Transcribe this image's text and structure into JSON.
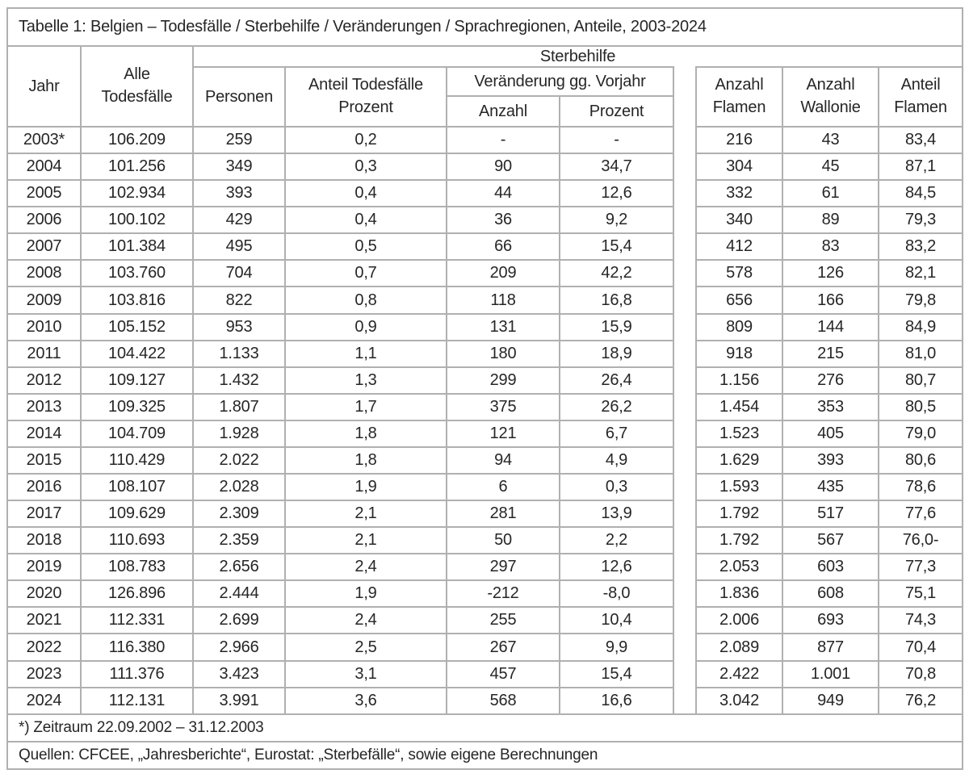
{
  "colors": {
    "border": "#b0b0b0",
    "text": "#262626",
    "background": "#ffffff"
  },
  "headers": {
    "jahr": "Jahr",
    "alle_todesfaelle": "Alle\nTodesfälle",
    "sterbehilfe": "Sterbehilfe",
    "personen": "Personen",
    "anteil_todesfaelle_prozent": "Anteil Todesfälle\nProzent",
    "veraenderung_gg_vorjahr": "Veränderung gg. Vorjahr",
    "anzahl": "Anzahl",
    "prozent": "Prozent",
    "anzahl_flamen": "Anzahl\nFlamen",
    "anzahl_wallonie": "Anzahl\nWallonie",
    "anteil_flamen": "Anteil\nFlamen"
  },
  "chart_data": {
    "type": "table",
    "title": "Tabelle 1: Belgien – Todesfälle / Sterbehilfe / Veränderungen / Sprachregionen, Anteile, 2003-2024",
    "column_groups": [
      "Sterbehilfe",
      "Veränderung gg. Vorjahr"
    ],
    "columns": [
      "Jahr",
      "Alle Todesfälle",
      "Sterbehilfe Personen",
      "Sterbehilfe Anteil Todesfälle Prozent",
      "Veränderung gg. Vorjahr Anzahl",
      "Veränderung gg. Vorjahr Prozent",
      "Anzahl Flamen",
      "Anzahl Wallonie",
      "Anteil Flamen"
    ],
    "rows": [
      [
        "2003*",
        "106.209",
        "259",
        "0,2",
        "-",
        "-",
        "216",
        "43",
        "83,4"
      ],
      [
        "2004",
        "101.256",
        "349",
        "0,3",
        "90",
        "34,7",
        "304",
        "45",
        "87,1"
      ],
      [
        "2005",
        "102.934",
        "393",
        "0,4",
        "44",
        "12,6",
        "332",
        "61",
        "84,5"
      ],
      [
        "2006",
        "100.102",
        "429",
        "0,4",
        "36",
        "9,2",
        "340",
        "89",
        "79,3"
      ],
      [
        "2007",
        "101.384",
        "495",
        "0,5",
        "66",
        "15,4",
        "412",
        "83",
        "83,2"
      ],
      [
        "2008",
        "103.760",
        "704",
        "0,7",
        "209",
        "42,2",
        "578",
        "126",
        "82,1"
      ],
      [
        "2009",
        "103.816",
        "822",
        "0,8",
        "118",
        "16,8",
        "656",
        "166",
        "79,8"
      ],
      [
        "2010",
        "105.152",
        "953",
        "0,9",
        "131",
        "15,9",
        "809",
        "144",
        "84,9"
      ],
      [
        "2011",
        "104.422",
        "1.133",
        "1,1",
        "180",
        "18,9",
        "918",
        "215",
        "81,0"
      ],
      [
        "2012",
        "109.127",
        "1.432",
        "1,3",
        "299",
        "26,4",
        "1.156",
        "276",
        "80,7"
      ],
      [
        "2013",
        "109.325",
        "1.807",
        "1,7",
        "375",
        "26,2",
        "1.454",
        "353",
        "80,5"
      ],
      [
        "2014",
        "104.709",
        "1.928",
        "1,8",
        "121",
        "6,7",
        "1.523",
        "405",
        "79,0"
      ],
      [
        "2015",
        "110.429",
        "2.022",
        "1,8",
        "94",
        "4,9",
        "1.629",
        "393",
        "80,6"
      ],
      [
        "2016",
        "108.107",
        "2.028",
        "1,9",
        "6",
        "0,3",
        "1.593",
        "435",
        "78,6"
      ],
      [
        "2017",
        "109.629",
        "2.309",
        "2,1",
        "281",
        "13,9",
        "1.792",
        "517",
        "77,6"
      ],
      [
        "2018",
        "110.693",
        "2.359",
        "2,1",
        "50",
        "2,2",
        "1.792",
        "567",
        "76,0-"
      ],
      [
        "2019",
        "108.783",
        "2.656",
        "2,4",
        "297",
        "12,6",
        "2.053",
        "603",
        "77,3"
      ],
      [
        "2020",
        "126.896",
        "2.444",
        "1,9",
        "-212",
        "-8,0",
        "1.836",
        "608",
        "75,1"
      ],
      [
        "2021",
        "112.331",
        "2.699",
        "2,4",
        "255",
        "10,4",
        "2.006",
        "693",
        "74,3"
      ],
      [
        "2022",
        "116.380",
        "2.966",
        "2,5",
        "267",
        "9,9",
        "2.089",
        "877",
        "70,4"
      ],
      [
        "2023",
        "111.376",
        "3.423",
        "3,1",
        "457",
        "15,4",
        "2.422",
        "1.001",
        "70,8"
      ],
      [
        "2024",
        "112.131",
        "3.991",
        "3,6",
        "568",
        "16,6",
        "3.042",
        "949",
        "76,2"
      ]
    ],
    "footnote": "*) Zeitraum 22.09.2002 – 31.12.2003",
    "sources": "Quellen: CFCEE, „Jahresberichte“, Eurostat: „Sterbefälle“, sowie eigene Berechnungen"
  }
}
